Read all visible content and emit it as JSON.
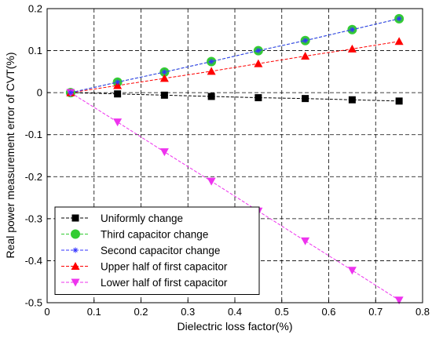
{
  "chart_data": {
    "type": "line",
    "title": "",
    "xlabel": "Dielectric loss factor(%)",
    "ylabel": "Real power measurement error of CVT(%)",
    "xlim": [
      0,
      0.8
    ],
    "ylim": [
      -0.5,
      0.2
    ],
    "xticks": [
      0,
      0.1,
      0.2,
      0.3,
      0.4,
      0.5,
      0.6,
      0.7,
      0.8
    ],
    "xtick_labels": [
      "0",
      "0.1",
      "0.2",
      "0.3",
      "0.4",
      "0.5",
      "0.6",
      "0.7",
      "0.8"
    ],
    "yticks": [
      -0.5,
      -0.4,
      -0.3,
      -0.2,
      -0.1,
      0,
      0.1,
      0.2
    ],
    "ytick_labels": [
      "-0.5",
      "-0.4",
      "-0.3",
      "-0.2",
      "-0.1",
      "0",
      "0.1",
      "0.2"
    ],
    "grid": true,
    "legend_position": "bottom-left",
    "x": [
      0.05,
      0.15,
      0.25,
      0.35,
      0.45,
      0.55,
      0.65,
      0.75
    ],
    "series": [
      {
        "name": "Uniformly change",
        "marker": "square",
        "color": "#000000",
        "values": [
          0,
          -0.003,
          -0.006,
          -0.009,
          -0.012,
          -0.014,
          -0.017,
          -0.02
        ]
      },
      {
        "name": "Third capacitor change",
        "marker": "circle",
        "color": "#33cc33",
        "values": [
          0,
          0.025,
          0.049,
          0.074,
          0.1,
          0.124,
          0.15,
          0.176
        ]
      },
      {
        "name": "Second capacitor change",
        "marker": "star",
        "color": "#3333ff",
        "values": [
          0,
          0.025,
          0.049,
          0.074,
          0.1,
          0.124,
          0.15,
          0.176
        ]
      },
      {
        "name": "Upper half of first capacitor",
        "marker": "triangle-up",
        "color": "#ff0000",
        "values": [
          0,
          0.017,
          0.034,
          0.051,
          0.069,
          0.087,
          0.104,
          0.122
        ]
      },
      {
        "name": "Lower half of first capacitor",
        "marker": "triangle-down",
        "color": "#ee33ee",
        "values": [
          0,
          -0.07,
          -0.141,
          -0.211,
          -0.282,
          -0.353,
          -0.423,
          -0.494
        ]
      }
    ]
  }
}
